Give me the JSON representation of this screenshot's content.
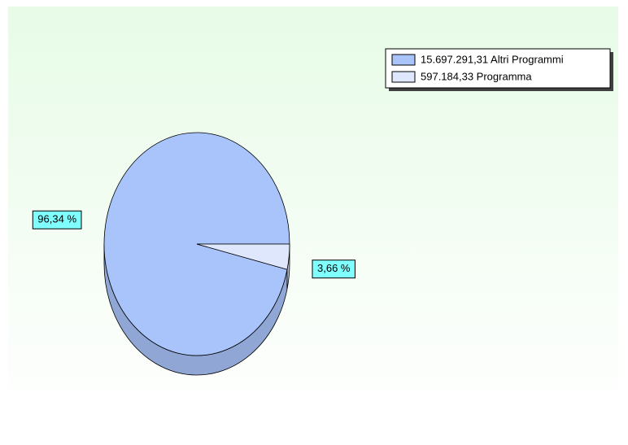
{
  "chart_data": {
    "type": "pie",
    "categories": [
      "15.697.291,31 Altri Programmi",
      "597.184,33 Programma"
    ],
    "values": [
      96.34,
      3.66
    ],
    "value_labels": [
      "96,34 %",
      "3,66 %"
    ],
    "colors": [
      "#a9c4fb",
      "#dfe7fd"
    ],
    "legend": "top-right"
  }
}
